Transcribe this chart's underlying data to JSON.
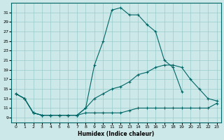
{
  "xlabel": "Humidex (Indice chaleur)",
  "background_color": "#cce8e8",
  "line_color": "#006666",
  "grid_color": "#99cccc",
  "xlim": [
    -0.5,
    23.5
  ],
  "ylim": [
    8,
    33
  ],
  "xticks": [
    0,
    1,
    2,
    3,
    4,
    5,
    6,
    7,
    8,
    9,
    10,
    11,
    12,
    13,
    14,
    15,
    16,
    17,
    18,
    19,
    20,
    21,
    22,
    23
  ],
  "yticks": [
    9,
    11,
    13,
    15,
    17,
    19,
    21,
    23,
    25,
    27,
    29,
    31
  ],
  "line1_x": [
    0,
    1,
    2,
    3,
    4,
    5,
    6,
    7,
    8,
    9,
    10,
    11,
    12,
    13,
    14,
    15,
    16,
    17,
    18,
    19,
    20,
    21,
    22,
    23
  ],
  "line1_y": [
    14,
    13,
    10,
    9.5,
    9.5,
    9.5,
    9.5,
    9.5,
    10,
    10,
    10,
    10,
    10,
    10.5,
    11,
    11,
    11,
    11,
    11,
    11,
    11,
    11,
    11,
    12
  ],
  "line2_x": [
    0,
    1,
    2,
    3,
    4,
    5,
    6,
    7,
    8,
    9,
    10,
    11,
    12,
    13,
    14,
    15,
    16,
    17,
    18,
    19,
    20,
    21,
    22,
    23
  ],
  "line2_y": [
    14,
    13,
    10,
    9.5,
    9.5,
    9.5,
    9.5,
    9.5,
    11,
    20,
    25,
    31.5,
    32,
    30.5,
    30.5,
    28.5,
    27,
    21,
    19.5,
    14.5,
    null,
    null,
    null,
    null
  ],
  "line3_x": [
    0,
    1,
    2,
    3,
    4,
    5,
    6,
    7,
    8,
    9,
    10,
    11,
    12,
    13,
    14,
    15,
    16,
    17,
    18,
    19,
    20,
    21,
    22,
    23
  ],
  "line3_y": [
    14,
    13,
    10,
    9.5,
    9.5,
    9.5,
    9.5,
    9.5,
    11,
    13,
    14,
    15,
    15.5,
    16.5,
    18,
    18.5,
    19.5,
    20,
    20,
    19.5,
    17,
    15,
    13,
    12.5
  ]
}
